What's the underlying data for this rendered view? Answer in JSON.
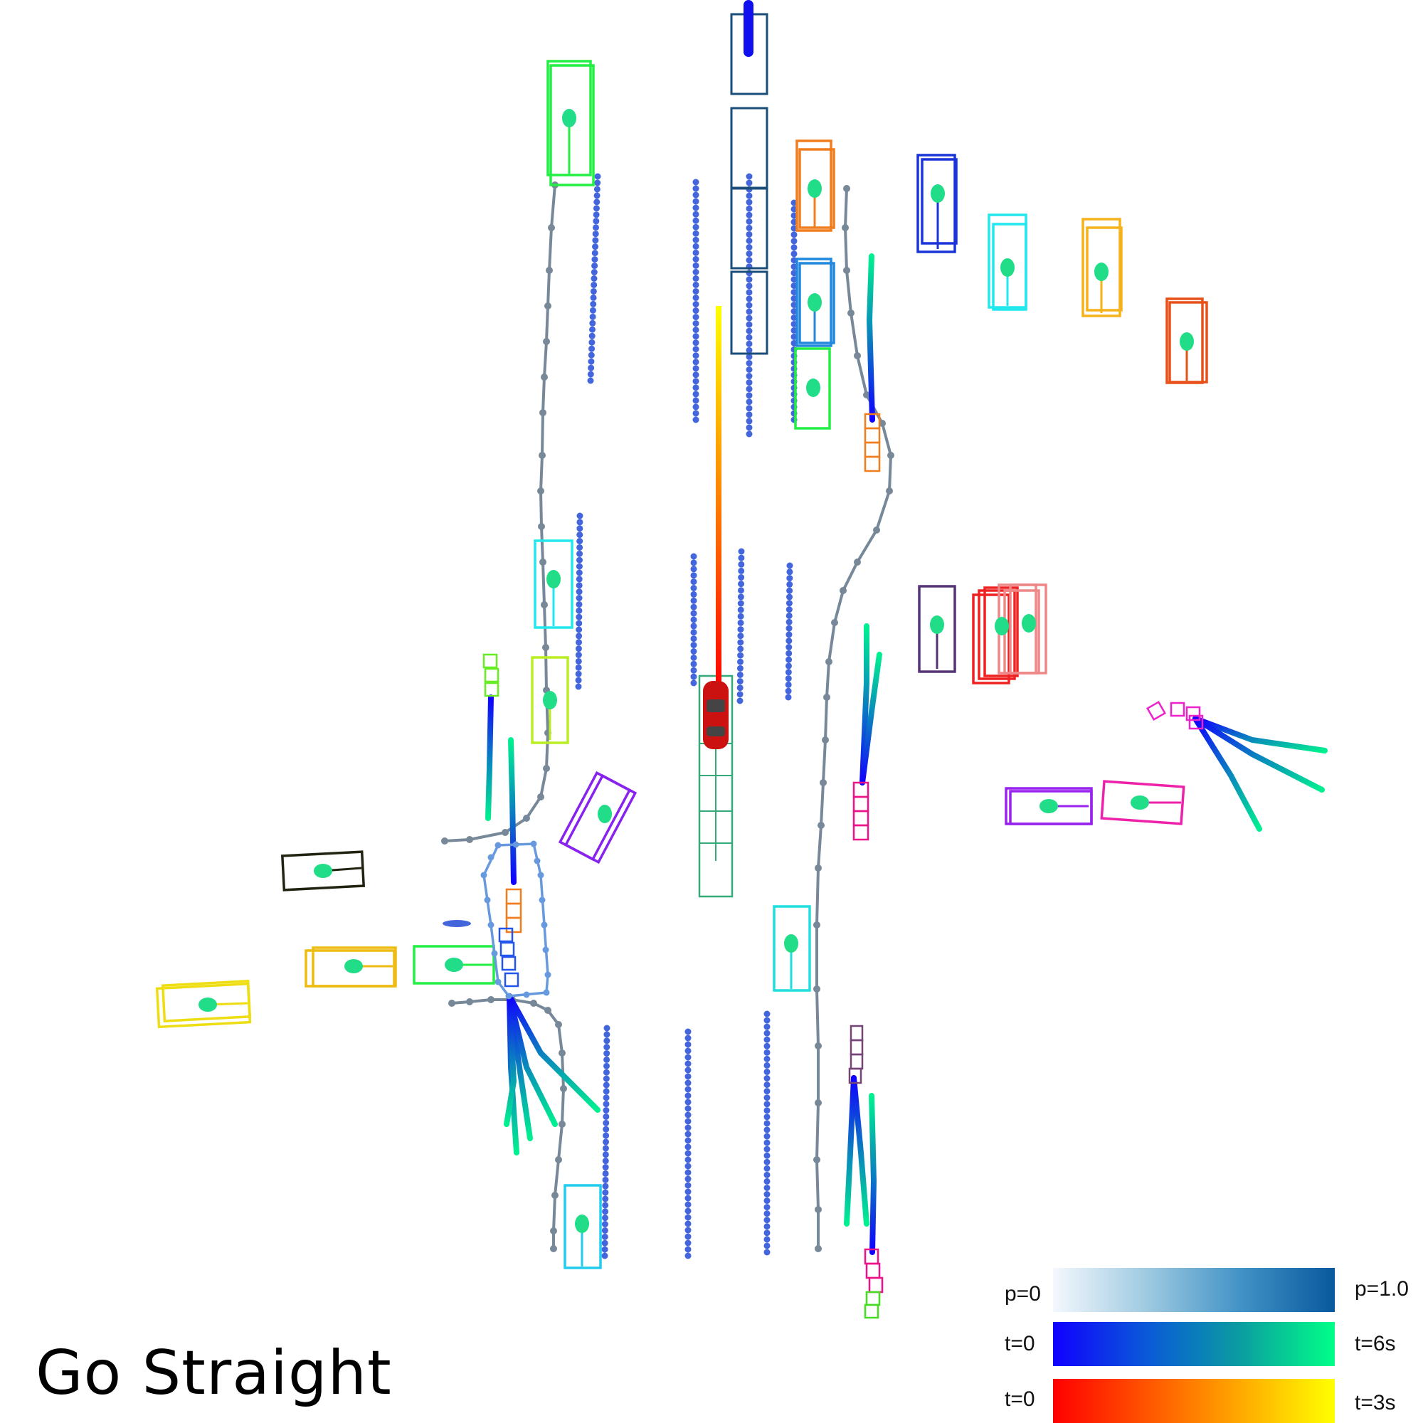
{
  "caption": "Go Straight",
  "legend": {
    "prob": {
      "left": "p=0",
      "right": "p=1.0"
    },
    "time_agents": {
      "left": "t=0",
      "right": "t=6s"
    },
    "time_ego": {
      "left": "t=0",
      "right": "t=3s"
    }
  },
  "colors": {
    "lane_point": "#4466dd",
    "road_edge": "#778899",
    "ego_car": "#cc1111",
    "agent_traj_start": "#1100ff",
    "agent_traj_end": "#00ff88",
    "ego_traj_start": "#ff0000",
    "ego_traj_end": "#ffff00",
    "prob_start": "#f4f8fd",
    "prob_end": "#08589e"
  }
}
